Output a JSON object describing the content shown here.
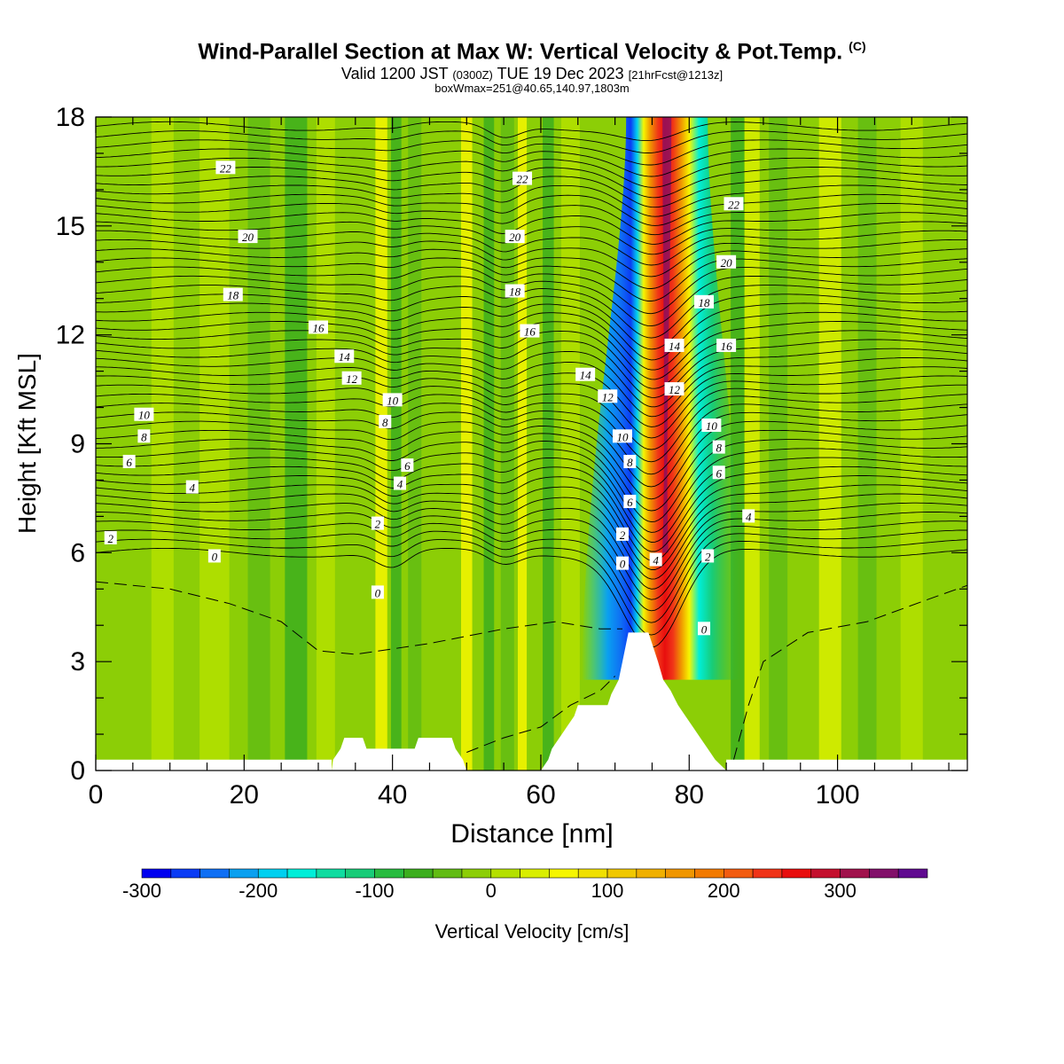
{
  "header": {
    "title": "Wind-Parallel Section at Max W: Vertical Velocity & Pot.Temp.",
    "title_mark": "(C)",
    "valid_prefix": "Valid 1200 JST",
    "valid_utc": "(0300Z)",
    "valid_date": "TUE 19 Dec 2023",
    "forecast": "[21hrFcst@1213z]",
    "box_info": "boxWmax=251@40.65,140.97,1803m"
  },
  "chart_data": {
    "type": "heatmap",
    "xlabel": "Distance [nm]",
    "ylabel": "Height [Kft MSL]",
    "xlim": [
      0,
      117.5
    ],
    "ylim": [
      0,
      18
    ],
    "xticks": [
      "0",
      "20",
      "40",
      "60",
      "80",
      "100"
    ],
    "yticks": [
      "0",
      "3",
      "6",
      "9",
      "12",
      "15",
      "18"
    ],
    "colorbar": {
      "label": "Vertical Velocity [cm/s]",
      "range": [
        -300,
        375
      ],
      "step": 25,
      "ticks": [
        "-300",
        "-200",
        "-100",
        "0",
        "100",
        "200",
        "300"
      ],
      "colors": [
        "#0000f0",
        "#0b3cf5",
        "#0f6ff4",
        "#0aa0f0",
        "#00d0f0",
        "#00eed8",
        "#10dca0",
        "#18cc78",
        "#28bc40",
        "#3cae1e",
        "#62bc14",
        "#8cce06",
        "#b4e000",
        "#d9ee00",
        "#f6f600",
        "#f0e000",
        "#f0c800",
        "#f0b000",
        "#f09600",
        "#f27a00",
        "#f25c10",
        "#f03418",
        "#e80e0e",
        "#c4102e",
        "#a0124c",
        "#82106a",
        "#600a90"
      ]
    },
    "max_w_cm_s": 251,
    "plume_x_nm": 77,
    "mountain": [
      [
        31.8,
        0
      ],
      [
        32,
        0.3
      ],
      [
        33,
        0.6
      ],
      [
        33.5,
        0.9
      ],
      [
        36,
        0.9
      ],
      [
        36.5,
        0.6
      ],
      [
        43,
        0.6
      ],
      [
        43.5,
        0.9
      ],
      [
        48,
        0.9
      ],
      [
        48.5,
        0.6
      ],
      [
        49.5,
        0.3
      ],
      [
        50,
        0
      ],
      [
        60,
        0
      ],
      [
        61,
        0.3
      ],
      [
        61.5,
        0.6
      ],
      [
        62.5,
        0.9
      ],
      [
        63.5,
        1.2
      ],
      [
        64.5,
        1.5
      ],
      [
        65,
        1.8
      ],
      [
        69,
        1.8
      ],
      [
        69.5,
        2.1
      ],
      [
        70.5,
        2.5
      ],
      [
        71,
        3.0
      ],
      [
        71.5,
        3.5
      ],
      [
        71.8,
        3.8
      ],
      [
        74.5,
        3.8
      ],
      [
        75,
        3.5
      ],
      [
        75.8,
        3.0
      ],
      [
        76.5,
        2.5
      ],
      [
        77.5,
        2.2
      ],
      [
        78.5,
        1.8
      ],
      [
        79.5,
        1.5
      ],
      [
        80.5,
        1.2
      ],
      [
        81.5,
        0.9
      ],
      [
        82.5,
        0.6
      ],
      [
        83.5,
        0.3
      ],
      [
        85,
        0
      ]
    ],
    "isentrope_labels": [
      {
        "t": "22",
        "x": 17.5,
        "y": 16.6
      },
      {
        "t": "20",
        "x": 20.5,
        "y": 14.7
      },
      {
        "t": "18",
        "x": 18.5,
        "y": 13.1
      },
      {
        "t": "16",
        "x": 30,
        "y": 12.2
      },
      {
        "t": "14",
        "x": 33.5,
        "y": 11.4
      },
      {
        "t": "12",
        "x": 34.5,
        "y": 10.8
      },
      {
        "t": "10",
        "x": 6.5,
        "y": 9.8
      },
      {
        "t": "8",
        "x": 6.5,
        "y": 9.2
      },
      {
        "t": "6",
        "x": 4.5,
        "y": 8.5
      },
      {
        "t": "4",
        "x": 13,
        "y": 7.8
      },
      {
        "t": "2",
        "x": 2,
        "y": 6.4
      },
      {
        "t": "0",
        "x": 16,
        "y": 5.9
      },
      {
        "t": "10",
        "x": 40,
        "y": 10.2
      },
      {
        "t": "8",
        "x": 39,
        "y": 9.6
      },
      {
        "t": "6",
        "x": 42,
        "y": 8.4
      },
      {
        "t": "4",
        "x": 41,
        "y": 7.9
      },
      {
        "t": "2",
        "x": 38,
        "y": 6.8
      },
      {
        "t": "0",
        "x": 38,
        "y": 4.9
      },
      {
        "t": "22",
        "x": 57.5,
        "y": 16.3
      },
      {
        "t": "20",
        "x": 56.5,
        "y": 14.7
      },
      {
        "t": "18",
        "x": 56.5,
        "y": 13.2
      },
      {
        "t": "16",
        "x": 58.5,
        "y": 12.1
      },
      {
        "t": "14",
        "x": 66,
        "y": 10.9
      },
      {
        "t": "12",
        "x": 69,
        "y": 10.3
      },
      {
        "t": "10",
        "x": 71,
        "y": 9.2
      },
      {
        "t": "8",
        "x": 72,
        "y": 8.5
      },
      {
        "t": "6",
        "x": 72,
        "y": 7.4
      },
      {
        "t": "2",
        "x": 71,
        "y": 6.5
      },
      {
        "t": "0",
        "x": 71,
        "y": 5.7
      },
      {
        "t": "4",
        "x": 75.5,
        "y": 5.8
      },
      {
        "t": "14",
        "x": 78,
        "y": 11.7
      },
      {
        "t": "12",
        "x": 78,
        "y": 10.5
      },
      {
        "t": "22",
        "x": 86,
        "y": 15.6
      },
      {
        "t": "20",
        "x": 85,
        "y": 14.0
      },
      {
        "t": "18",
        "x": 82,
        "y": 12.9
      },
      {
        "t": "16",
        "x": 85,
        "y": 11.7
      },
      {
        "t": "10",
        "x": 83,
        "y": 9.5
      },
      {
        "t": "8",
        "x": 84,
        "y": 8.9
      },
      {
        "t": "6",
        "x": 84,
        "y": 8.2
      },
      {
        "t": "4",
        "x": 88,
        "y": 7.0
      },
      {
        "t": "2",
        "x": 82.5,
        "y": 5.9
      },
      {
        "t": "0",
        "x": 82,
        "y": 3.9
      }
    ]
  }
}
